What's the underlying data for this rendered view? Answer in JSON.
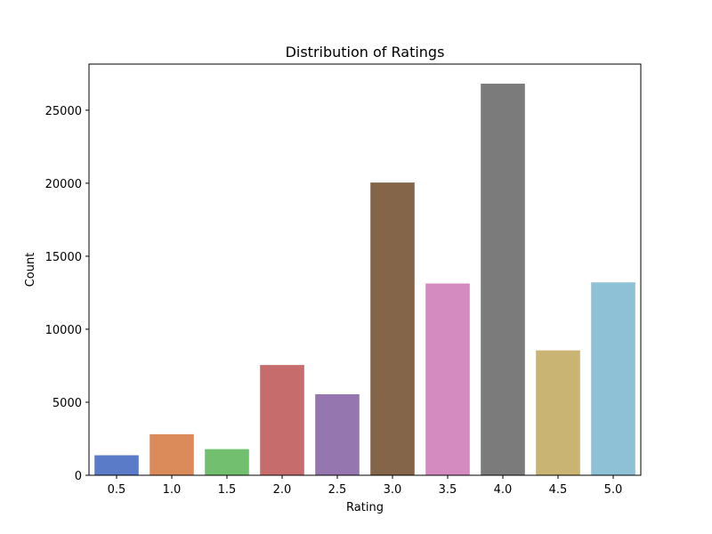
{
  "chart_data": {
    "type": "bar",
    "title": "Distribution of Ratings",
    "xlabel": "Rating",
    "ylabel": "Count",
    "categories": [
      "0.5",
      "1.0",
      "1.5",
      "2.0",
      "2.5",
      "3.0",
      "3.5",
      "4.0",
      "4.5",
      "5.0"
    ],
    "values": [
      1370,
      2811,
      1791,
      7551,
      5550,
      20047,
      13136,
      26818,
      8551,
      13211
    ],
    "colors": [
      "#5a7bc8",
      "#db8b5a",
      "#72c06f",
      "#c76c6c",
      "#9576ae",
      "#84654a",
      "#d38bc0",
      "#7b7b7b",
      "#c9b473",
      "#8fc1d6"
    ],
    "ylim": [
      0,
      28160
    ],
    "yticks": [
      0,
      5000,
      10000,
      15000,
      20000,
      25000
    ],
    "grid": false,
    "legend": "none"
  }
}
